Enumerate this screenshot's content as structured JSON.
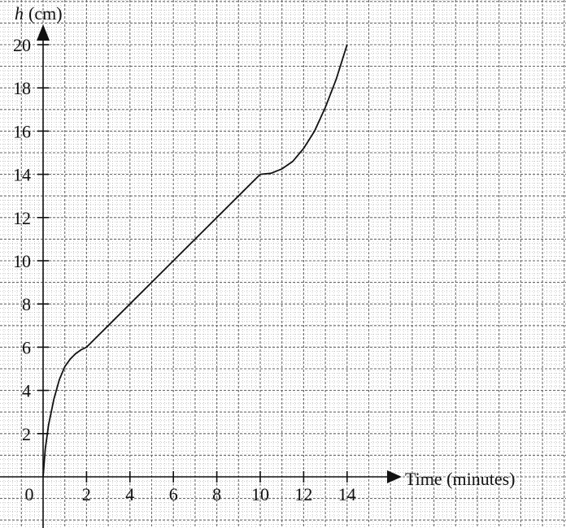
{
  "chart_data": {
    "type": "line",
    "title": "",
    "xlabel": "Time (minutes)",
    "ylabel_var": "h",
    "ylabel_unit": "(cm)",
    "xlim": [
      0,
      14
    ],
    "ylim": [
      0,
      20
    ],
    "x_ticks": [
      0,
      2,
      4,
      6,
      8,
      10,
      12,
      14
    ],
    "y_ticks": [
      2,
      4,
      6,
      8,
      10,
      12,
      14,
      16,
      18,
      20
    ],
    "x_tick_labels": [
      "0",
      "2",
      "4",
      "6",
      "8",
      "10",
      "12",
      "14"
    ],
    "y_tick_labels": [
      "2",
      "4",
      "6",
      "8",
      "10",
      "12",
      "14",
      "16",
      "18",
      "20"
    ],
    "grid": true,
    "series": [
      {
        "x": [
          0,
          0.1,
          0.25,
          0.5,
          0.75,
          1.0,
          1.25,
          1.5,
          1.75,
          2.0,
          3.0,
          4.0,
          5.0,
          6.0,
          7.0,
          8.0,
          9.0,
          10.0,
          10.5,
          11.0,
          11.5,
          12.0,
          12.5,
          13.0,
          13.5,
          14.0
        ],
        "y": [
          0,
          1.3,
          2.4,
          3.6,
          4.5,
          5.1,
          5.45,
          5.7,
          5.88,
          6.0,
          7.0,
          8.0,
          9.0,
          10.0,
          11.0,
          12.0,
          13.0,
          14.0,
          14.05,
          14.25,
          14.6,
          15.2,
          16.0,
          17.1,
          18.4,
          20.0
        ],
        "color": "#111111"
      }
    ]
  }
}
